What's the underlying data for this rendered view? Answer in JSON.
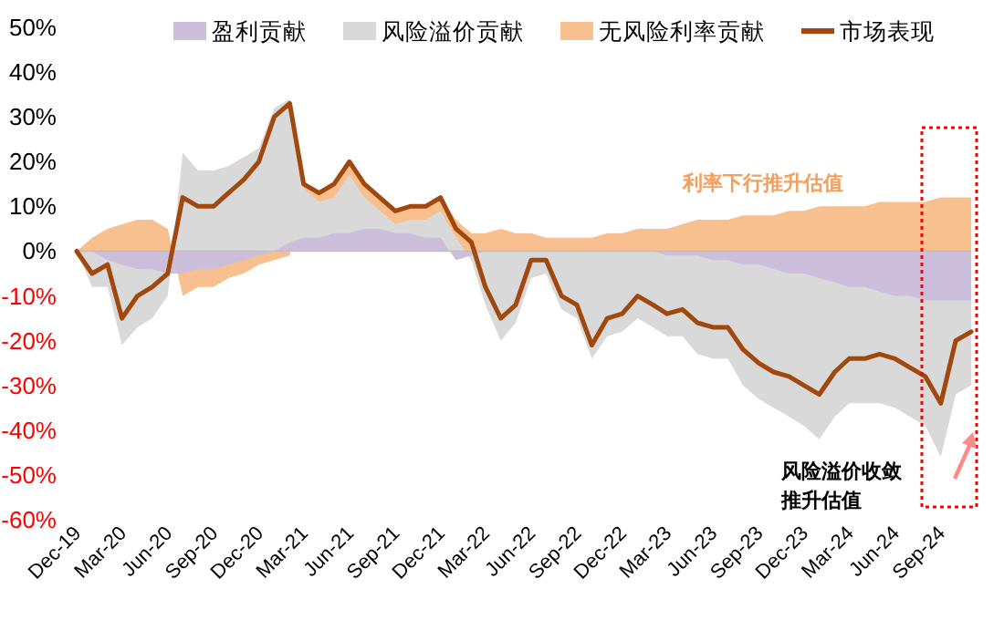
{
  "chart_data": {
    "type": "area",
    "legend": "top",
    "grid": false,
    "x": [
      "2019-12",
      "2020-01",
      "2020-02",
      "2020-03",
      "2020-04",
      "2020-05",
      "2020-06",
      "2020-07",
      "2020-08",
      "2020-09",
      "2020-10",
      "2020-11",
      "2020-12",
      "2021-01",
      "2021-02",
      "2021-03",
      "2021-04",
      "2021-05",
      "2021-06",
      "2021-07",
      "2021-08",
      "2021-09",
      "2021-10",
      "2021-11",
      "2021-12",
      "2022-01",
      "2022-02",
      "2022-03",
      "2022-04",
      "2022-05",
      "2022-06",
      "2022-07",
      "2022-08",
      "2022-09",
      "2022-10",
      "2022-11",
      "2022-12",
      "2023-01",
      "2023-02",
      "2023-03",
      "2023-04",
      "2023-05",
      "2023-06",
      "2023-07",
      "2023-08",
      "2023-09",
      "2023-10",
      "2023-11",
      "2023-12",
      "2024-01",
      "2024-02",
      "2024-03",
      "2024-04",
      "2024-05",
      "2024-06",
      "2024-07",
      "2024-08",
      "2024-09",
      "2024-10",
      "2024-11"
    ],
    "series": [
      {
        "name": "盈利贡献",
        "color": "#cbbfdc",
        "values": [
          0,
          0,
          -2,
          -3,
          -4,
          -4,
          -5,
          -5,
          -4,
          -4,
          -3,
          -2,
          -1,
          0,
          2,
          3,
          3,
          4,
          4,
          5,
          5,
          4,
          4,
          3,
          3,
          -2,
          -1,
          0,
          0,
          0,
          0,
          0,
          0,
          0,
          0,
          0,
          0,
          0,
          0,
          -1,
          -1,
          -1,
          -2,
          -2,
          -3,
          -3,
          -4,
          -5,
          -5,
          -6,
          -7,
          -8,
          -8,
          -9,
          -10,
          -10,
          -11,
          -11,
          -11,
          -11
        ]
      },
      {
        "name": "风险溢价贡献",
        "color": "#d9d9d9",
        "values": [
          0,
          -8,
          -8,
          -21,
          -17,
          -15,
          -10,
          22,
          18,
          18,
          19,
          21,
          23,
          32,
          34,
          14,
          11,
          12,
          17,
          12,
          9,
          6,
          7,
          7,
          9,
          3,
          -2,
          -12,
          -20,
          -16,
          -6,
          -5,
          -13,
          -15,
          -24,
          -19,
          -18,
          -15,
          -17,
          -19,
          -19,
          -23,
          -24,
          -24,
          -30,
          -33,
          -35,
          -37,
          -39,
          -42,
          -37,
          -34,
          -34,
          -34,
          -35,
          -37,
          -39,
          -46,
          -32,
          -30
        ]
      },
      {
        "name": "无风险利率贡献",
        "color": "#f8c08f",
        "values": [
          0,
          3,
          5,
          6,
          7,
          7,
          5,
          -10,
          -8,
          -8,
          -6,
          -5,
          -3,
          -2,
          -1,
          15,
          13,
          15,
          20,
          15,
          12,
          9,
          10,
          10,
          12,
          7,
          4,
          4,
          5,
          4,
          4,
          3,
          3,
          3,
          3,
          4,
          4,
          5,
          5,
          5,
          6,
          7,
          7,
          7,
          8,
          8,
          8,
          9,
          9,
          10,
          10,
          10,
          10,
          11,
          11,
          11,
          11,
          12,
          12,
          12
        ]
      },
      {
        "name": "市场表现",
        "type": "line",
        "color": "#a0480e",
        "values": [
          0,
          -5,
          -3,
          -15,
          -10,
          -8,
          -5,
          12,
          10,
          10,
          13,
          16,
          20,
          30,
          33,
          15,
          13,
          15,
          20,
          15,
          12,
          9,
          10,
          10,
          12,
          5,
          2,
          -8,
          -15,
          -12,
          -2,
          -2,
          -10,
          -12,
          -21,
          -15,
          -14,
          -10,
          -12,
          -14,
          -13,
          -16,
          -17,
          -17,
          -22,
          -25,
          -27,
          -28,
          -30,
          -32,
          -27,
          -24,
          -24,
          -23,
          -24,
          -26,
          -28,
          -34,
          -20,
          -18
        ]
      }
    ],
    "xlim": [
      "2019-12",
      "2024-11"
    ],
    "xticks": [
      {
        "value": "2019-12",
        "label": "Dec-19"
      },
      {
        "value": "2020-03",
        "label": "Mar-20"
      },
      {
        "value": "2020-06",
        "label": "Jun-20"
      },
      {
        "value": "2020-09",
        "label": "Sep-20"
      },
      {
        "value": "2020-12",
        "label": "Dec-20"
      },
      {
        "value": "2021-03",
        "label": "Mar-21"
      },
      {
        "value": "2021-06",
        "label": "Jun-21"
      },
      {
        "value": "2021-09",
        "label": "Sep-21"
      },
      {
        "value": "2021-12",
        "label": "Dec-21"
      },
      {
        "value": "2022-03",
        "label": "Mar-22"
      },
      {
        "value": "2022-06",
        "label": "Jun-22"
      },
      {
        "value": "2022-09",
        "label": "Sep-22"
      },
      {
        "value": "2022-12",
        "label": "Dec-22"
      },
      {
        "value": "2023-03",
        "label": "Mar-23"
      },
      {
        "value": "2023-06",
        "label": "Jun-23"
      },
      {
        "value": "2023-09",
        "label": "Sep-23"
      },
      {
        "value": "2023-12",
        "label": "Dec-23"
      },
      {
        "value": "2024-03",
        "label": "Mar-24"
      },
      {
        "value": "2024-06",
        "label": "Jun-24"
      },
      {
        "value": "2024-09",
        "label": "Sep-24"
      }
    ],
    "ylim": [
      -60,
      50
    ],
    "yticks": [
      {
        "value": 50,
        "label": "50%"
      },
      {
        "value": 40,
        "label": "40%"
      },
      {
        "value": 30,
        "label": "30%"
      },
      {
        "value": 20,
        "label": "20%"
      },
      {
        "value": 10,
        "label": "10%"
      },
      {
        "value": 0,
        "label": "0%"
      },
      {
        "value": -10,
        "label": "-10%"
      },
      {
        "value": -20,
        "label": "-20%"
      },
      {
        "value": -30,
        "label": "-30%"
      },
      {
        "value": -40,
        "label": "-40%"
      },
      {
        "value": -50,
        "label": "-50%"
      },
      {
        "value": -60,
        "label": "-60%"
      }
    ],
    "ref_lines": [
      {
        "axis": "y",
        "value": 0,
        "color": "#bfbfbf"
      }
    ],
    "annotations": [
      "利率下行推升估值",
      "风险溢价收敛",
      "推升估值"
    ]
  }
}
